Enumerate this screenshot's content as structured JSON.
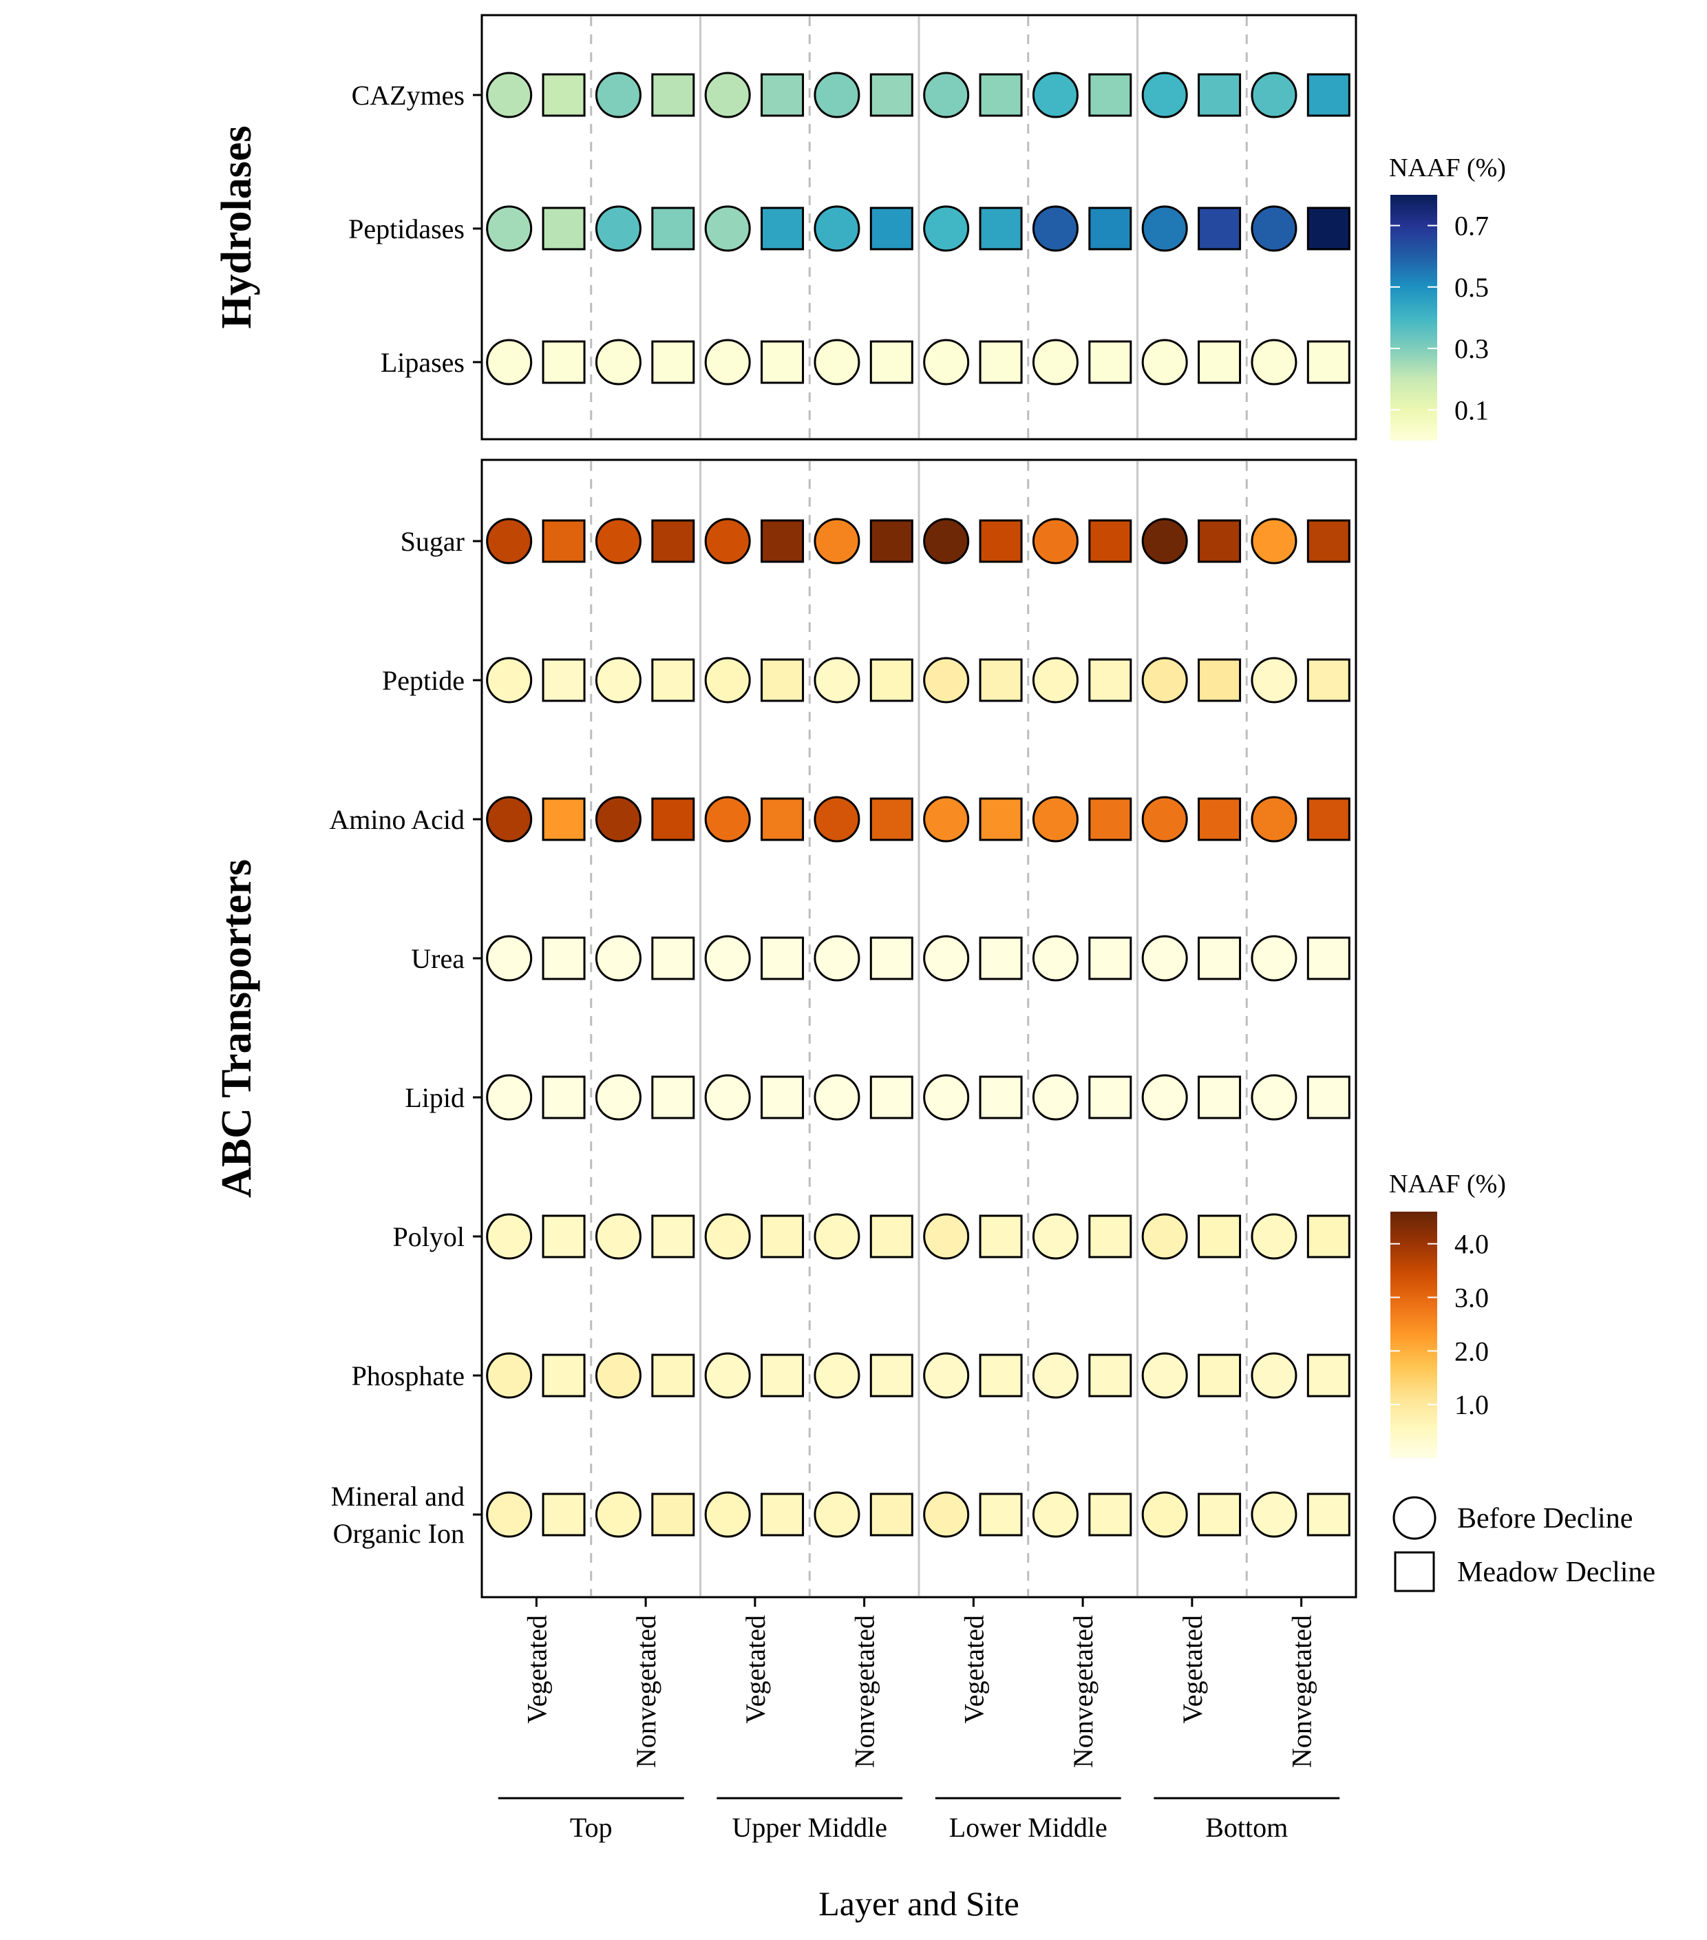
{
  "chart_data": {
    "type": "heatmap",
    "xlabel": "Layer and Site",
    "layers": [
      "Top",
      "Upper Middle",
      "Lower Middle",
      "Bottom"
    ],
    "sites": [
      "Vegetated",
      "Nonvegetated"
    ],
    "periods": [
      "Before Decline",
      "Meadow Decline"
    ],
    "columns": [
      "Top / Vegetated / Before Decline",
      "Top / Vegetated / Meadow Decline",
      "Top / Nonvegetated / Before Decline",
      "Top / Nonvegetated / Meadow Decline",
      "Upper Middle / Vegetated / Before Decline",
      "Upper Middle / Vegetated / Meadow Decline",
      "Upper Middle / Nonvegetated / Before Decline",
      "Upper Middle / Nonvegetated / Meadow Decline",
      "Lower Middle / Vegetated / Before Decline",
      "Lower Middle / Vegetated / Meadow Decline",
      "Lower Middle / Nonvegetated / Before Decline",
      "Lower Middle / Nonvegetated / Meadow Decline",
      "Bottom / Vegetated / Before Decline",
      "Bottom / Vegetated / Meadow Decline",
      "Bottom / Nonvegetated / Before Decline",
      "Bottom / Nonvegetated / Meadow Decline"
    ],
    "legend_shapes": [
      {
        "shape": "circle",
        "label": "Before Decline"
      },
      {
        "shape": "square",
        "label": "Meadow Decline"
      }
    ],
    "panels": [
      {
        "facet": "Hydrolases",
        "legend_title": "NAAF (%)",
        "colorscale": [
          "#ffffd9",
          "#edf8b1",
          "#c7e9b4",
          "#7fcdbb",
          "#41b6c4",
          "#1d91c0",
          "#225ea8",
          "#253494",
          "#081d58"
        ],
        "value_range": [
          0,
          0.8
        ],
        "legend_ticks": [
          "0.1",
          "0.3",
          "0.5",
          "0.7"
        ],
        "legend_tick_values": [
          0.1,
          0.3,
          0.5,
          0.7
        ],
        "rows": [
          {
            "label": "CAZymes",
            "values": [
              0.22,
              0.2,
              0.3,
              0.22,
              0.22,
              0.27,
              0.3,
              0.27,
              0.3,
              0.28,
              0.4,
              0.28,
              0.4,
              0.36,
              0.37,
              0.45
            ]
          },
          {
            "label": "Peptidases",
            "values": [
              0.25,
              0.22,
              0.36,
              0.3,
              0.27,
              0.45,
              0.42,
              0.48,
              0.4,
              0.45,
              0.6,
              0.52,
              0.55,
              0.65,
              0.6,
              0.8
            ]
          },
          {
            "label": "Lipases",
            "values": [
              0.01,
              0.01,
              0.01,
              0.01,
              0.01,
              0.01,
              0.01,
              0.01,
              0.01,
              0.01,
              0.01,
              0.01,
              0.01,
              0.01,
              0.01,
              0.01
            ]
          }
        ]
      },
      {
        "facet": "ABC Transporters",
        "legend_title": "NAAF (%)",
        "colorscale": [
          "#ffffe5",
          "#fff7bc",
          "#fee391",
          "#fec44f",
          "#fe9929",
          "#ec7014",
          "#cc4c02",
          "#993404",
          "#662506"
        ],
        "value_range": [
          0,
          4.6
        ],
        "legend_ticks": [
          "1.0",
          "2.0",
          "3.0",
          "4.0"
        ],
        "legend_tick_values": [
          1.0,
          2.0,
          3.0,
          4.0
        ],
        "rows": [
          {
            "label": "Sugar",
            "values": [
              3.6,
              3.1,
              3.4,
              3.8,
              3.4,
              4.2,
              2.6,
              4.4,
              4.5,
              3.5,
              2.8,
              3.5,
              4.5,
              3.9,
              2.3,
              3.7
            ]
          },
          {
            "label": "Peptide",
            "values": [
              0.55,
              0.4,
              0.45,
              0.5,
              0.6,
              0.7,
              0.45,
              0.6,
              0.85,
              0.7,
              0.55,
              0.55,
              0.95,
              1.0,
              0.4,
              0.75
            ]
          },
          {
            "label": "Amino Acid",
            "values": [
              3.8,
              2.3,
              3.9,
              3.5,
              2.9,
              2.7,
              3.3,
              3.1,
              2.5,
              2.4,
              2.6,
              2.8,
              2.8,
              3.0,
              2.7,
              3.3
            ]
          },
          {
            "label": "Urea",
            "values": [
              0.1,
              0.08,
              0.1,
              0.08,
              0.1,
              0.08,
              0.1,
              0.08,
              0.1,
              0.08,
              0.1,
              0.08,
              0.1,
              0.08,
              0.1,
              0.08
            ]
          },
          {
            "label": "Lipid",
            "values": [
              0.1,
              0.08,
              0.1,
              0.08,
              0.1,
              0.08,
              0.1,
              0.08,
              0.1,
              0.08,
              0.1,
              0.08,
              0.1,
              0.08,
              0.1,
              0.08
            ]
          },
          {
            "label": "Polyol",
            "values": [
              0.5,
              0.45,
              0.5,
              0.45,
              0.55,
              0.55,
              0.5,
              0.55,
              0.75,
              0.5,
              0.45,
              0.5,
              0.7,
              0.6,
              0.5,
              0.6
            ]
          },
          {
            "label": "Phosphate",
            "values": [
              0.7,
              0.5,
              0.75,
              0.55,
              0.45,
              0.45,
              0.45,
              0.45,
              0.4,
              0.45,
              0.4,
              0.45,
              0.4,
              0.5,
              0.4,
              0.45
            ]
          },
          {
            "label": "Mineral and\nOrganic Ion",
            "values": [
              0.65,
              0.55,
              0.6,
              0.7,
              0.6,
              0.55,
              0.55,
              0.65,
              0.75,
              0.5,
              0.5,
              0.5,
              0.6,
              0.5,
              0.45,
              0.45
            ]
          }
        ]
      }
    ]
  }
}
